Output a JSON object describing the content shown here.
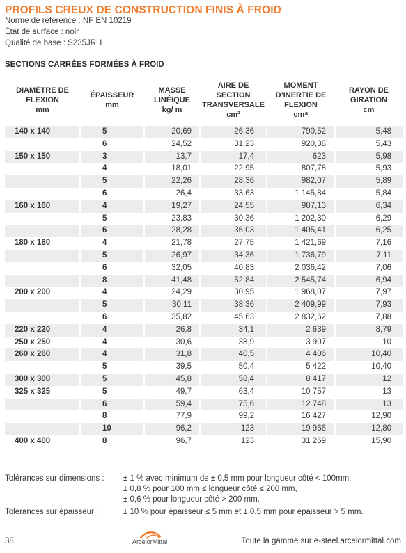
{
  "title": "PROFILS CREUX DE CONSTRUCTION FINIS À FROID",
  "meta": {
    "reference": "Norme de référence : NF EN 10219",
    "surface": "État de surface : noir",
    "quality": "Qualité de base : S235JRH"
  },
  "section_title": "SECTIONS CARRÉES FORMÉES À FROID",
  "table": {
    "headers": [
      {
        "lines": [
          "DIAMÈTRE DE",
          "FLEXION",
          "mm"
        ]
      },
      {
        "lines": [
          "ÉPAISSEUR",
          "mm"
        ]
      },
      {
        "lines": [
          "MASSE",
          "LINÉIQUE",
          "kg/ m"
        ]
      },
      {
        "lines": [
          "AIRE DE",
          "SECTION",
          "TRANSVERSALE",
          "cm²"
        ]
      },
      {
        "lines": [
          "MOMENT",
          "D’INERTIE DE",
          "FLEXION",
          "cm⁴"
        ]
      },
      {
        "lines": [
          "RAYON DE",
          "GIRATION",
          "cm"
        ]
      }
    ],
    "rows": [
      [
        "140 x 140",
        "5",
        "20,69",
        "26,36",
        "790,52",
        "5,48"
      ],
      [
        "",
        "6",
        "24,52",
        "31,23",
        "920,38",
        "5,43"
      ],
      [
        "150 x 150",
        "3",
        "13,7",
        "17,4",
        "623",
        "5,98"
      ],
      [
        "",
        "4",
        "18,01",
        "22,95",
        "807,78",
        "5,93"
      ],
      [
        "",
        "5",
        "22,26",
        "28,36",
        "982,07",
        "5,89"
      ],
      [
        "",
        "6",
        "26,4",
        "33,63",
        "1 145,84",
        "5,84"
      ],
      [
        "160 x 160",
        "4",
        "19,27",
        "24,55",
        "987,13",
        "6,34"
      ],
      [
        "",
        "5",
        "23,83",
        "30,36",
        "1 202,30",
        "6,29"
      ],
      [
        "",
        "6",
        "28,28",
        "36,03",
        "1 405,41",
        "6,25"
      ],
      [
        "180 x 180",
        "4",
        "21,78",
        "27,75",
        "1 421,69",
        "7,16"
      ],
      [
        "",
        "5",
        "26,97",
        "34,36",
        "1 736,79",
        "7,11"
      ],
      [
        "",
        "6",
        "32,05",
        "40,83",
        "2 036,42",
        "7,06"
      ],
      [
        "",
        "8",
        "41,48",
        "52,84",
        "2 545,74",
        "6,94"
      ],
      [
        "200 x 200",
        "4",
        "24,29",
        "30,95",
        "1 968,07",
        "7,97"
      ],
      [
        "",
        "5",
        "30,11",
        "38,36",
        "2 409,99",
        "7,93"
      ],
      [
        "",
        "6",
        "35,82",
        "45,63",
        "2 832,62",
        "7,88"
      ],
      [
        "220 x 220",
        "4",
        "26,8",
        "34,1",
        "2 639",
        "8,79"
      ],
      [
        "250 x 250",
        "4",
        "30,6",
        "38,9",
        "3 907",
        "10"
      ],
      [
        "260 x 260",
        "4",
        "31,8",
        "40,5",
        "4 406",
        "10,40"
      ],
      [
        "",
        "5",
        "39,5",
        "50,4",
        "5 422",
        "10,40"
      ],
      [
        "300 x 300",
        "5",
        "45,8",
        "58,4",
        "8 417",
        "12"
      ],
      [
        "325 x 325",
        "5",
        "49,7",
        "63,4",
        "10 757",
        "13"
      ],
      [
        "",
        "6",
        "59,4",
        "75,6",
        "12 748",
        "13"
      ],
      [
        "",
        "8",
        "77,9",
        "99,2",
        "16 427",
        "12,90"
      ],
      [
        "",
        "10",
        "96,2",
        "123",
        "19 966",
        "12,80"
      ],
      [
        "400 x 400",
        "8",
        "96,7",
        "123",
        "31 269",
        "15,90"
      ]
    ],
    "shaded_rows": [
      0,
      2,
      4,
      6,
      8,
      10,
      12,
      14,
      16,
      18,
      20,
      22,
      24
    ]
  },
  "tolerances": {
    "dimensions_label": "Tolérances sur dimensions :",
    "dimensions_lines": [
      "±  1 % avec minimum de ± 0,5 mm pour longueur côté < 100mm,",
      "± 0,8 % pour 100 mm ≤  longueur côté  ≤ 200 mm,",
      "± 0,6 % pour longueur côté > 200 mm,"
    ],
    "thickness_label": "Tolérances sur épaisseur :",
    "thickness_line": "± 10 % pour épaisseur ≤ 5 mm et ± 0,5 mm pour épaisseur > 5 mm."
  },
  "footer": {
    "page_number": "38",
    "logo_text": "ArcelorMittal",
    "link_text": "Toute la gamme sur e-steel.arcelormittal.com"
  },
  "colors": {
    "accent": "#ef7d2d",
    "row_shade": "#ececec",
    "text": "#3a3a3a"
  }
}
